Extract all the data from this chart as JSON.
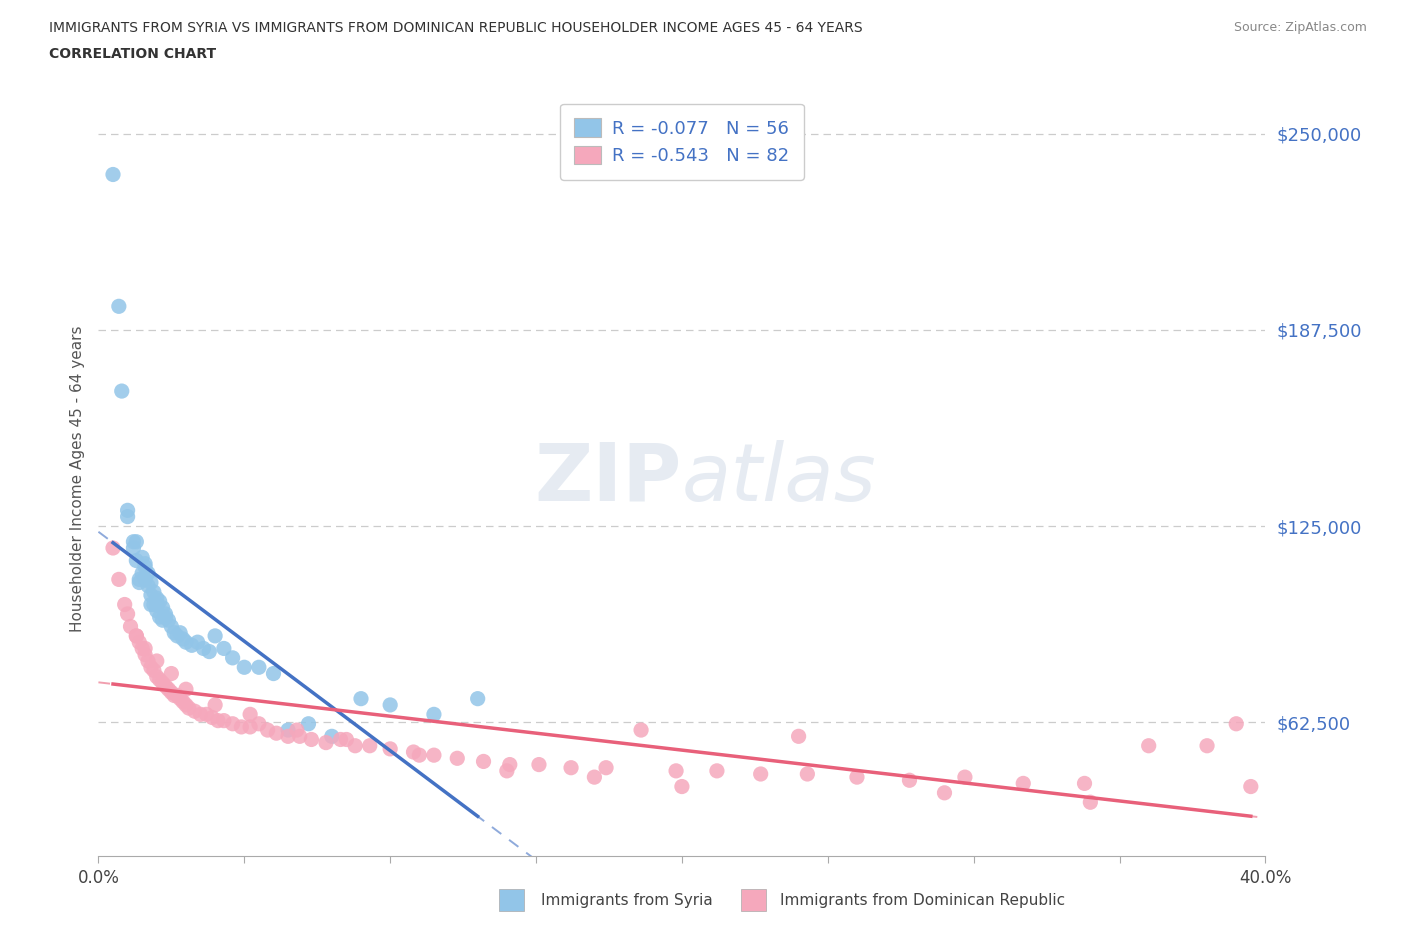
{
  "title_line1": "IMMIGRANTS FROM SYRIA VS IMMIGRANTS FROM DOMINICAN REPUBLIC HOUSEHOLDER INCOME AGES 45 - 64 YEARS",
  "title_line2": "CORRELATION CHART",
  "source_text": "Source: ZipAtlas.com",
  "ylabel": "Householder Income Ages 45 - 64 years",
  "xlim": [
    0.0,
    0.4
  ],
  "ylim": [
    20000,
    260000
  ],
  "yticks": [
    62500,
    125000,
    187500,
    250000
  ],
  "ytick_labels": [
    "$62,500",
    "$125,000",
    "$187,500",
    "$250,000"
  ],
  "xtick_vals": [
    0.0,
    0.05,
    0.1,
    0.15,
    0.2,
    0.25,
    0.3,
    0.35,
    0.4
  ],
  "xtick_labels": [
    "0.0%",
    "",
    "",
    "",
    "",
    "",
    "",
    "",
    "40.0%"
  ],
  "grid_color": "#cccccc",
  "color_syria": "#92C5E8",
  "color_dr": "#F5A8BC",
  "line_color_syria": "#4472C4",
  "line_color_dr": "#E8607A",
  "axis_color": "#4472C4",
  "legend_R_syria": "-0.077",
  "legend_N_syria": "56",
  "legend_R_dr": "-0.543",
  "legend_N_dr": "82",
  "syria_x": [
    0.005,
    0.007,
    0.01,
    0.012,
    0.013,
    0.013,
    0.014,
    0.015,
    0.015,
    0.016,
    0.016,
    0.017,
    0.017,
    0.018,
    0.018,
    0.019,
    0.019,
    0.02,
    0.02,
    0.021,
    0.021,
    0.022,
    0.022,
    0.023,
    0.024,
    0.025,
    0.026,
    0.027,
    0.028,
    0.029,
    0.03,
    0.032,
    0.034,
    0.036,
    0.038,
    0.04,
    0.043,
    0.046,
    0.05,
    0.055,
    0.06,
    0.065,
    0.072,
    0.08,
    0.09,
    0.1,
    0.115,
    0.13,
    0.008,
    0.01,
    0.012,
    0.014,
    0.016,
    0.018,
    0.02,
    0.023
  ],
  "syria_y": [
    237000,
    195000,
    130000,
    120000,
    114000,
    120000,
    108000,
    115000,
    110000,
    108000,
    113000,
    106000,
    110000,
    103000,
    107000,
    100000,
    104000,
    98000,
    102000,
    96000,
    101000,
    95000,
    99000,
    97000,
    95000,
    93000,
    91000,
    90000,
    91000,
    89000,
    88000,
    87000,
    88000,
    86000,
    85000,
    90000,
    86000,
    83000,
    80000,
    80000,
    78000,
    60000,
    62000,
    58000,
    70000,
    68000,
    65000,
    70000,
    168000,
    128000,
    118000,
    107000,
    112000,
    100000,
    100000,
    96000
  ],
  "dr_x": [
    0.005,
    0.007,
    0.009,
    0.01,
    0.011,
    0.013,
    0.014,
    0.015,
    0.016,
    0.017,
    0.018,
    0.019,
    0.02,
    0.021,
    0.022,
    0.023,
    0.024,
    0.025,
    0.026,
    0.027,
    0.028,
    0.029,
    0.03,
    0.031,
    0.033,
    0.035,
    0.037,
    0.039,
    0.041,
    0.043,
    0.046,
    0.049,
    0.052,
    0.055,
    0.058,
    0.061,
    0.065,
    0.069,
    0.073,
    0.078,
    0.083,
    0.088,
    0.093,
    0.1,
    0.108,
    0.115,
    0.123,
    0.132,
    0.141,
    0.151,
    0.162,
    0.174,
    0.186,
    0.198,
    0.212,
    0.227,
    0.243,
    0.26,
    0.278,
    0.297,
    0.317,
    0.338,
    0.36,
    0.38,
    0.395,
    0.013,
    0.016,
    0.02,
    0.025,
    0.03,
    0.04,
    0.052,
    0.068,
    0.085,
    0.11,
    0.14,
    0.17,
    0.2,
    0.24,
    0.29,
    0.34,
    0.39
  ],
  "dr_y": [
    118000,
    108000,
    100000,
    97000,
    93000,
    90000,
    88000,
    86000,
    84000,
    82000,
    80000,
    79000,
    77000,
    76000,
    75000,
    74000,
    73000,
    72000,
    71000,
    71000,
    70000,
    69000,
    68000,
    67000,
    66000,
    65000,
    65000,
    64000,
    63000,
    63000,
    62000,
    61000,
    61000,
    62000,
    60000,
    59000,
    58000,
    58000,
    57000,
    56000,
    57000,
    55000,
    55000,
    54000,
    53000,
    52000,
    51000,
    50000,
    49000,
    49000,
    48000,
    48000,
    60000,
    47000,
    47000,
    46000,
    46000,
    45000,
    44000,
    45000,
    43000,
    43000,
    55000,
    55000,
    42000,
    90000,
    86000,
    82000,
    78000,
    73000,
    68000,
    65000,
    60000,
    57000,
    52000,
    47000,
    45000,
    42000,
    58000,
    40000,
    37000,
    62000
  ]
}
